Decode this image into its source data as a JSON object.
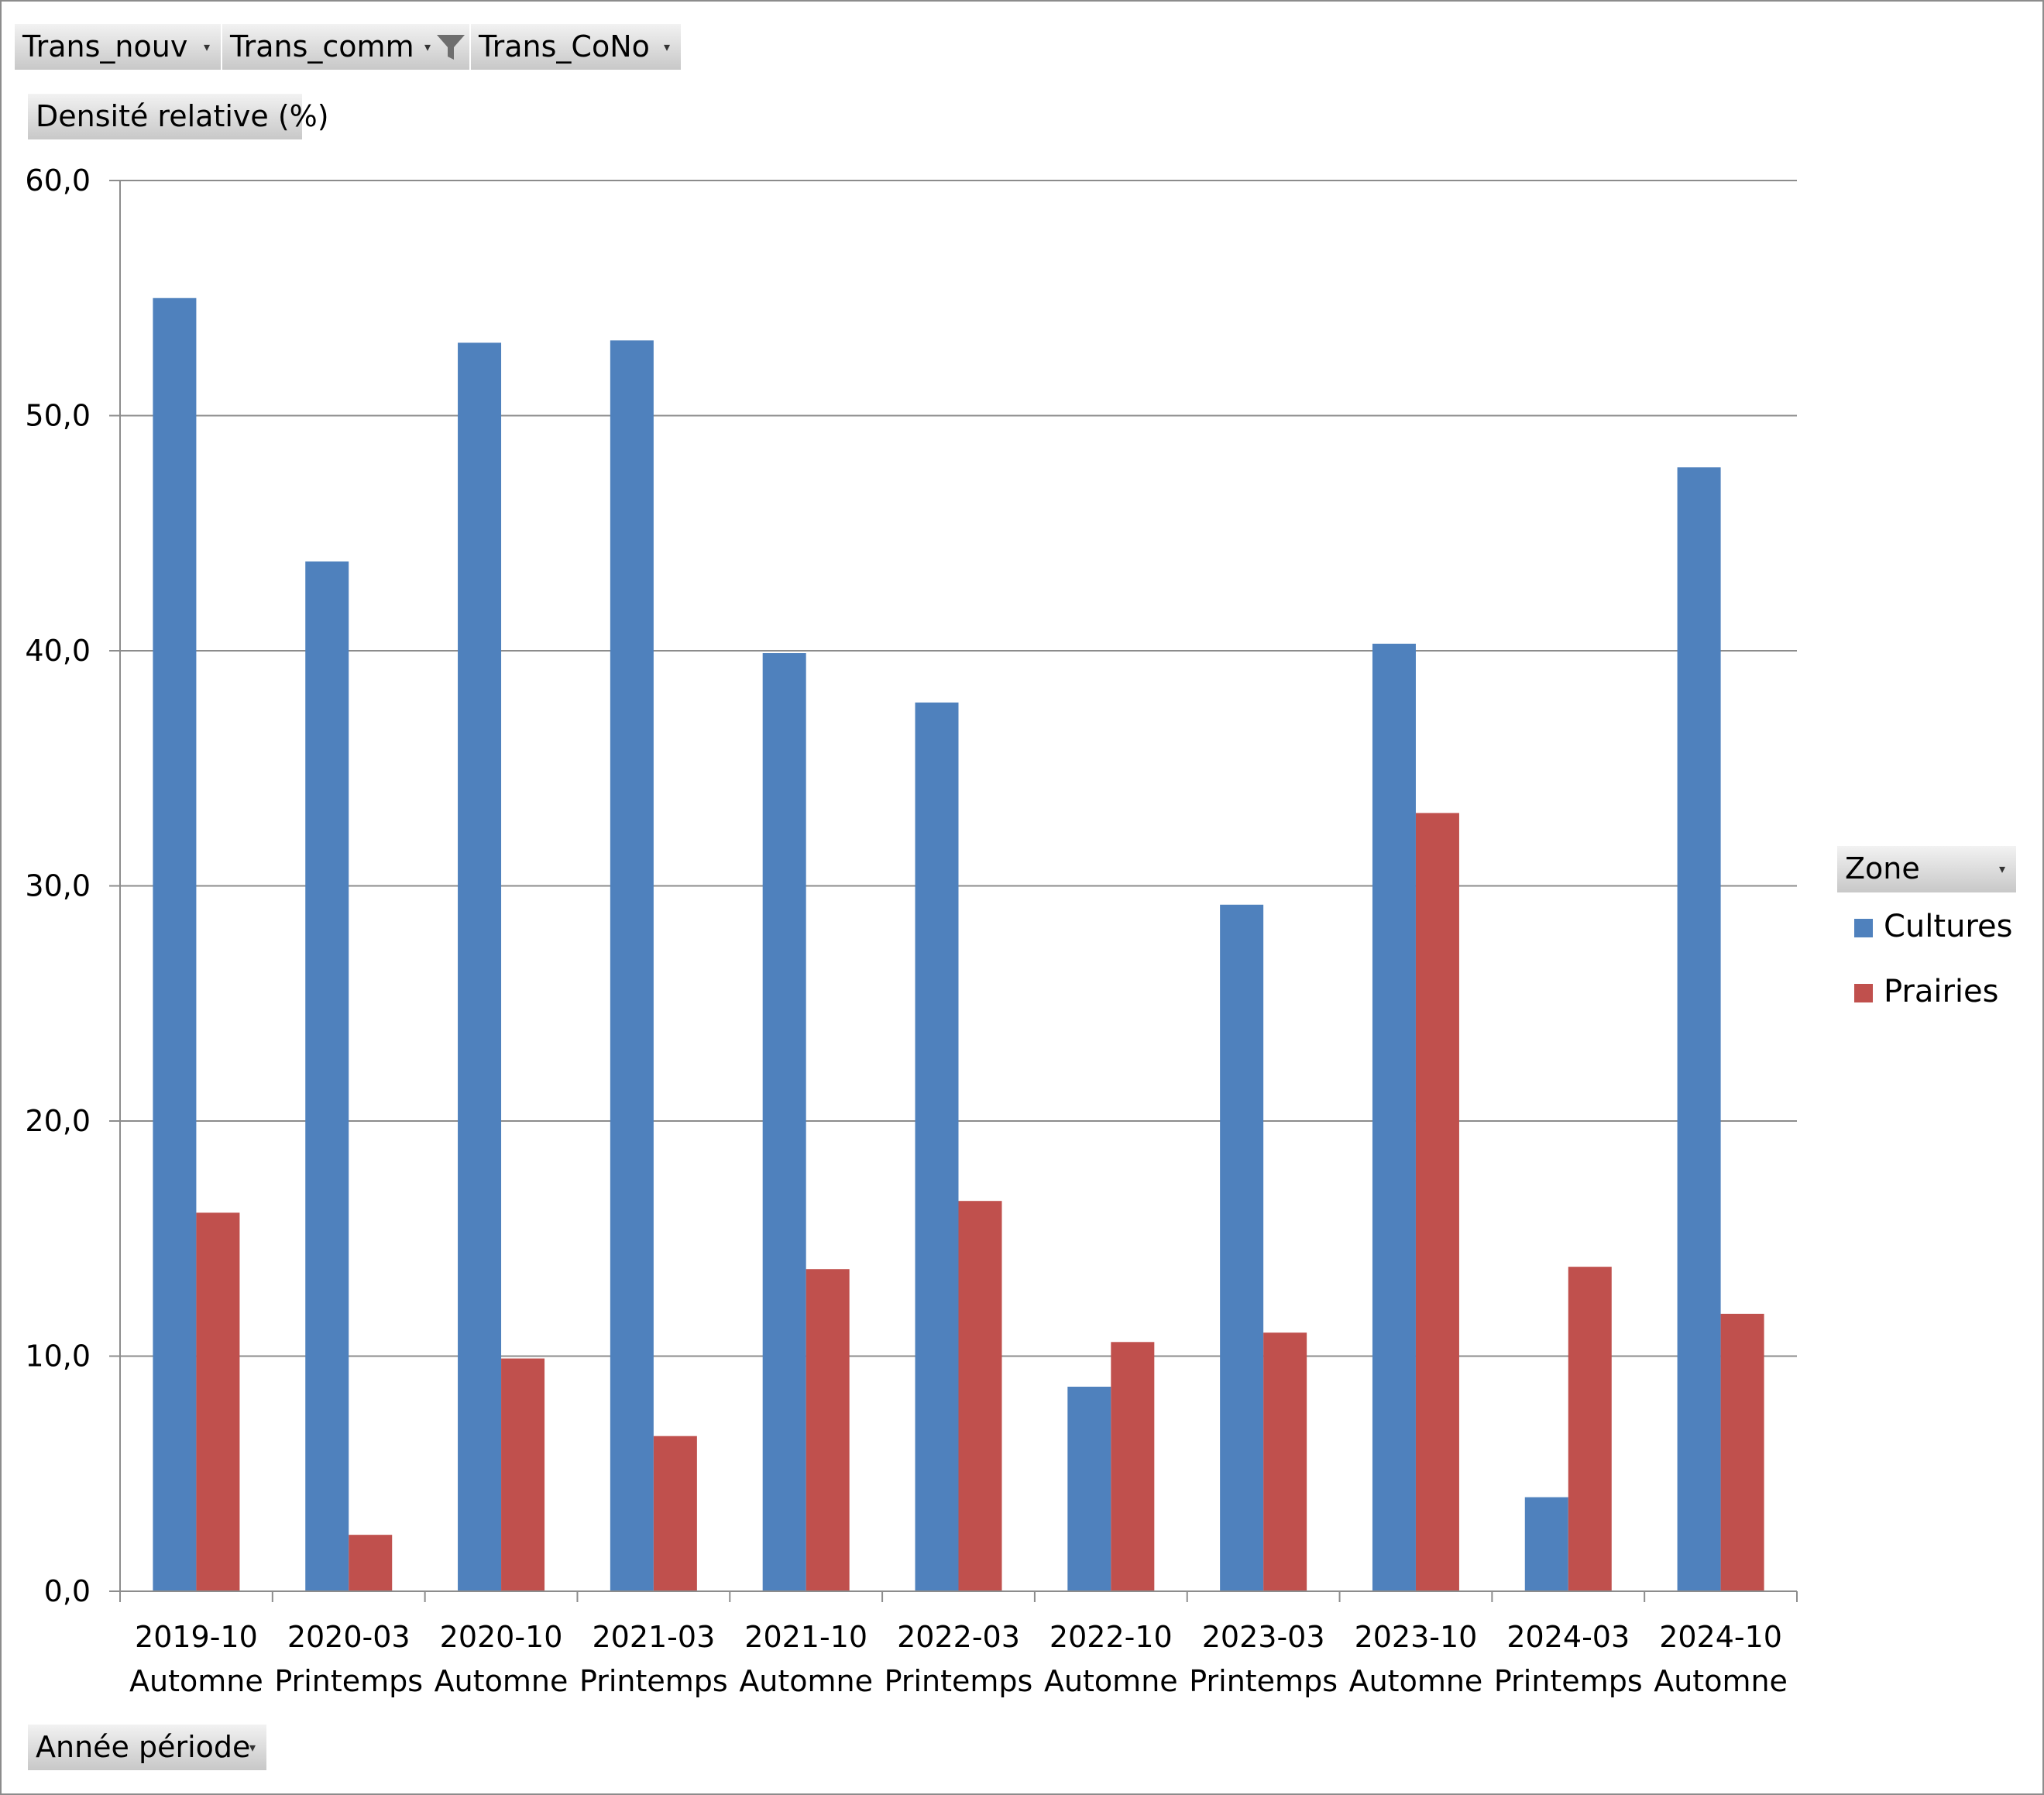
{
  "filters": [
    {
      "label": "Trans_nouv",
      "filtered": false
    },
    {
      "label": "Trans_comm",
      "filtered": true
    },
    {
      "label": "Trans_CoNo",
      "filtered": false
    }
  ],
  "value_field": {
    "label": "Densité relative  (%)"
  },
  "axis_field": {
    "label": "Année période"
  },
  "legend_field": {
    "label": "Zone"
  },
  "colors": {
    "Cultures": "#4f81bd",
    "Prairies": "#c0504d"
  },
  "chart_data": {
    "type": "bar",
    "ylim": [
      0,
      60
    ],
    "yticks": [
      {
        "value": 0,
        "label": "0,0"
      },
      {
        "value": 10,
        "label": "10,0"
      },
      {
        "value": 20,
        "label": "20,0"
      },
      {
        "value": 30,
        "label": "30,0"
      },
      {
        "value": 40,
        "label": "40,0"
      },
      {
        "value": 50,
        "label": "50,0"
      },
      {
        "value": 60,
        "label": "60,0"
      }
    ],
    "grid": true,
    "legend_position": "right",
    "categories": [
      {
        "period": "2019-10",
        "season": "Automne"
      },
      {
        "period": "2020-03",
        "season": "Printemps"
      },
      {
        "period": "2020-10",
        "season": "Automne"
      },
      {
        "period": "2021-03",
        "season": "Printemps"
      },
      {
        "period": "2021-10",
        "season": "Automne"
      },
      {
        "period": "2022-03",
        "season": "Printemps"
      },
      {
        "period": "2022-10",
        "season": "Automne"
      },
      {
        "period": "2023-03",
        "season": "Printemps"
      },
      {
        "period": "2023-10",
        "season": "Automne"
      },
      {
        "period": "2024-03",
        "season": "Printemps"
      },
      {
        "period": "2024-10",
        "season": "Automne"
      }
    ],
    "series": [
      {
        "name": "Cultures",
        "values": [
          55.0,
          43.8,
          53.1,
          53.2,
          39.9,
          37.8,
          8.7,
          29.2,
          40.3,
          4.0,
          47.8
        ]
      },
      {
        "name": "Prairies",
        "values": [
          16.1,
          2.4,
          9.9,
          6.6,
          13.7,
          16.6,
          10.6,
          11.0,
          33.1,
          13.8,
          11.8
        ]
      }
    ]
  }
}
